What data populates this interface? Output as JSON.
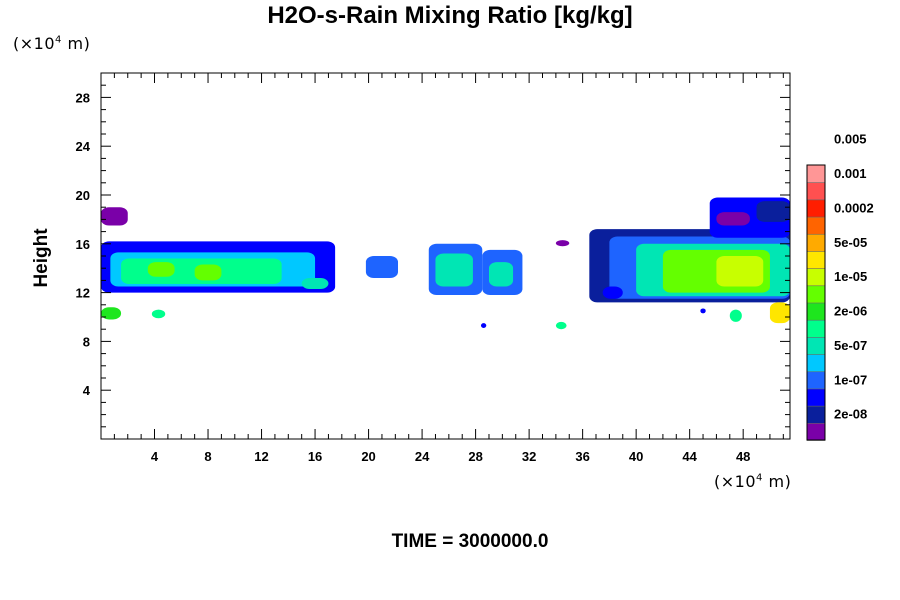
{
  "chart_data": {
    "type": "heatmap",
    "title": "H2O-s-Rain Mixing Ratio [kg/kg]",
    "ylabel": "Height",
    "unit_label_base": "(×10",
    "unit_label_exp": "4",
    "unit_label_tail": " m)",
    "footer": "TIME = 3000000.0",
    "x_range": [
      0,
      51.5
    ],
    "y_range": [
      0,
      30
    ],
    "x_ticks": [
      4,
      8,
      12,
      16,
      20,
      24,
      28,
      32,
      36,
      40,
      44,
      48
    ],
    "y_ticks": [
      4,
      8,
      12,
      16,
      20,
      24,
      28
    ],
    "colorbar": {
      "labels": [
        "2e-08",
        "1e-07",
        "5e-07",
        "2e-06",
        "1e-05",
        "5e-05",
        "0.0002",
        "0.001",
        "0.005"
      ],
      "colors": [
        "#7a00a8",
        "#0a1f9c",
        "#0000ff",
        "#1e64ff",
        "#00c8ff",
        "#00e6b4",
        "#00ff8c",
        "#1ee61e",
        "#64ff00",
        "#c8ff00",
        "#ffe600",
        "#ffaa00",
        "#ff6400",
        "#ff1e00",
        "#ff5050",
        "#ff9696"
      ]
    },
    "regions": [
      {
        "x0": 0,
        "x1": 17.5,
        "y0": 12.0,
        "y1": 16.2,
        "level": 2
      },
      {
        "x0": 0.7,
        "x1": 16.0,
        "y0": 12.5,
        "y1": 15.3,
        "level": 4
      },
      {
        "x0": 1.5,
        "x1": 13.5,
        "y0": 12.7,
        "y1": 14.8,
        "level": 6
      },
      {
        "x0": 3.5,
        "x1": 5.5,
        "y0": 13.3,
        "y1": 14.5,
        "level": 8
      },
      {
        "x0": 7.0,
        "x1": 9.0,
        "y0": 13.0,
        "y1": 14.3,
        "level": 8
      },
      {
        "x0": 15.0,
        "x1": 17.0,
        "y0": 12.3,
        "y1": 13.2,
        "level": 5
      },
      {
        "x0": 0,
        "x1": 2.0,
        "y0": 17.5,
        "y1": 19.0,
        "level": 0
      },
      {
        "x0": 0,
        "x1": 1.5,
        "y0": 9.8,
        "y1": 10.8,
        "level": 7
      },
      {
        "x0": 3.8,
        "x1": 4.8,
        "y0": 9.9,
        "y1": 10.6,
        "level": 6
      },
      {
        "x0": 19.8,
        "x1": 22.2,
        "y0": 13.2,
        "y1": 15.0,
        "level": 3
      },
      {
        "x0": 24.5,
        "x1": 28.5,
        "y0": 11.8,
        "y1": 16.0,
        "level": 3
      },
      {
        "x0": 25.0,
        "x1": 27.8,
        "y0": 12.5,
        "y1": 15.2,
        "level": 5
      },
      {
        "x0": 28.5,
        "x1": 31.5,
        "y0": 11.8,
        "y1": 15.5,
        "level": 3
      },
      {
        "x0": 29.0,
        "x1": 30.8,
        "y0": 12.5,
        "y1": 14.5,
        "level": 5
      },
      {
        "x0": 34.0,
        "x1": 35.0,
        "y0": 15.8,
        "y1": 16.3,
        "level": 0
      },
      {
        "x0": 28.4,
        "x1": 28.8,
        "y0": 9.1,
        "y1": 9.5,
        "level": 2
      },
      {
        "x0": 34.0,
        "x1": 34.8,
        "y0": 9.0,
        "y1": 9.6,
        "level": 6
      },
      {
        "x0": 36.5,
        "x1": 51.5,
        "y0": 11.2,
        "y1": 17.2,
        "level": 1
      },
      {
        "x0": 38.0,
        "x1": 51.5,
        "y0": 11.5,
        "y1": 16.6,
        "level": 3
      },
      {
        "x0": 40.0,
        "x1": 51.5,
        "y0": 11.7,
        "y1": 16.0,
        "level": 5
      },
      {
        "x0": 42.0,
        "x1": 50.0,
        "y0": 12.0,
        "y1": 15.5,
        "level": 8
      },
      {
        "x0": 46.0,
        "x1": 49.5,
        "y0": 12.5,
        "y1": 15.0,
        "level": 9
      },
      {
        "x0": 45.5,
        "x1": 51.5,
        "y0": 16.5,
        "y1": 19.8,
        "level": 2
      },
      {
        "x0": 49.0,
        "x1": 51.5,
        "y0": 17.8,
        "y1": 19.5,
        "level": 1
      },
      {
        "x0": 46.0,
        "x1": 48.5,
        "y0": 17.5,
        "y1": 18.6,
        "level": 0
      },
      {
        "x0": 50.0,
        "x1": 51.5,
        "y0": 9.5,
        "y1": 11.2,
        "level": 10
      },
      {
        "x0": 47.0,
        "x1": 47.9,
        "y0": 9.6,
        "y1": 10.6,
        "level": 6
      },
      {
        "x0": 44.8,
        "x1": 45.2,
        "y0": 10.3,
        "y1": 10.7,
        "level": 2
      },
      {
        "x0": 37.5,
        "x1": 39.0,
        "y0": 11.5,
        "y1": 12.5,
        "level": 2
      }
    ]
  }
}
